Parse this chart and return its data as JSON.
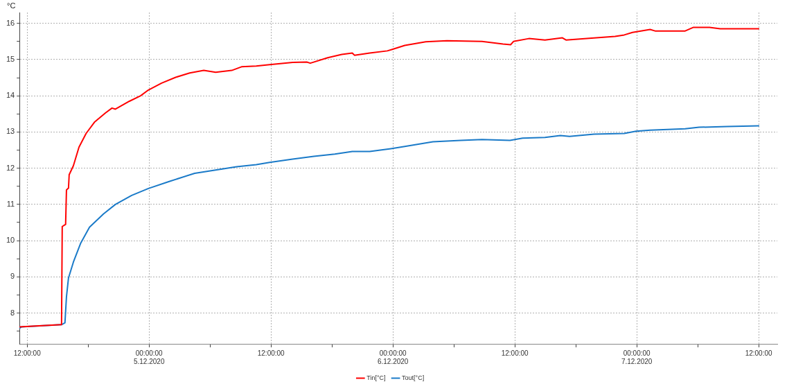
{
  "chart_data": {
    "type": "line",
    "ylabel": "°C",
    "xlim": [
      "2020-12-04T11:15",
      "2020-12-07T13:50"
    ],
    "xticks": [
      {
        "value": "2020-12-04T12:00",
        "label": "12:00:00"
      },
      {
        "value": "2020-12-04T18:00",
        "label": null
      },
      {
        "value": "2020-12-05T00:00",
        "label": "00:00:00\n5.12.2020"
      },
      {
        "value": "2020-12-05T06:00",
        "label": null
      },
      {
        "value": "2020-12-05T12:00",
        "label": "12:00:00"
      },
      {
        "value": "2020-12-05T18:00",
        "label": null
      },
      {
        "value": "2020-12-06T00:00",
        "label": "00:00:00\n6.12.2020"
      },
      {
        "value": "2020-12-06T06:00",
        "label": null
      },
      {
        "value": "2020-12-06T12:00",
        "label": "12:00:00"
      },
      {
        "value": "2020-12-06T18:00",
        "label": null
      },
      {
        "value": "2020-12-07T00:00",
        "label": "00:00:00\n7.12.2020"
      },
      {
        "value": "2020-12-07T06:00",
        "label": null
      },
      {
        "value": "2020-12-07T12:00",
        "label": "12:00:00"
      }
    ],
    "ylim": [
      7.15,
      16.3
    ],
    "yticks": [
      {
        "value": 7.5,
        "label": null
      },
      8,
      {
        "value": 8.5,
        "label": null
      },
      9,
      {
        "value": 9.5,
        "label": null
      },
      10,
      {
        "value": 10.5,
        "label": null
      },
      11,
      {
        "value": 11.5,
        "label": null
      },
      12,
      {
        "value": 12.5,
        "label": null
      },
      13,
      {
        "value": 13.5,
        "label": null
      },
      14,
      {
        "value": 14.5,
        "label": null
      },
      15,
      {
        "value": 15.5,
        "label": null
      },
      16
    ],
    "grid": true,
    "legend": "bottom",
    "marker": "none",
    "series": [
      {
        "name": "Tin[°C]",
        "color": "#ff0000",
        "x": [
          "2020-12-04T11:15",
          "2020-12-04T15:23",
          "2020-12-04T15:27",
          "2020-12-04T15:47",
          "2020-12-04T15:52",
          "2020-12-04T16:04",
          "2020-12-04T16:08",
          "2020-12-04T16:33",
          "2020-12-04T17:06",
          "2020-12-04T17:48",
          "2020-12-04T18:37",
          "2020-12-04T19:43",
          "2020-12-04T20:21",
          "2020-12-04T20:41",
          "2020-12-04T22:04",
          "2020-12-04T23:10",
          "2020-12-04T23:56",
          "2020-12-05T01:14",
          "2020-12-05T02:37",
          "2020-12-05T04:00",
          "2020-12-05T05:23",
          "2020-12-05T06:33",
          "2020-12-05T08:08",
          "2020-12-05T09:06",
          "2020-12-05T10:33",
          "2020-12-05T11:52",
          "2020-12-05T14:08",
          "2020-12-05T15:31",
          "2020-12-05T15:52",
          "2020-12-05T17:35",
          "2020-12-05T18:58",
          "2020-12-05T20:00",
          "2020-12-05T20:13",
          "2020-12-05T21:43",
          "2020-12-05T23:27",
          "2020-12-05T23:56",
          "2020-12-06T01:10",
          "2020-12-06T03:14",
          "2020-12-06T05:19",
          "2020-12-06T08:46",
          "2020-12-06T10:50",
          "2020-12-06T11:35",
          "2020-12-06T11:52",
          "2020-12-06T13:23",
          "2020-12-06T14:58",
          "2020-12-06T16:41",
          "2020-12-06T17:02",
          "2020-12-06T19:06",
          "2020-12-06T21:52",
          "2020-12-06T22:46",
          "2020-12-06T23:35",
          "2020-12-07T01:19",
          "2020-12-07T01:48",
          "2020-12-07T04:46",
          "2020-12-07T05:35",
          "2020-12-07T07:10",
          "2020-12-07T08:13",
          "2020-12-07T12:00"
        ],
        "values": [
          7.62,
          7.68,
          10.39,
          10.45,
          11.4,
          11.45,
          11.82,
          12.07,
          12.58,
          12.96,
          13.27,
          13.53,
          13.66,
          13.63,
          13.85,
          14.0,
          14.16,
          14.35,
          14.51,
          14.63,
          14.7,
          14.65,
          14.7,
          14.8,
          14.82,
          14.86,
          14.92,
          14.93,
          14.9,
          15.05,
          15.14,
          15.18,
          15.12,
          15.18,
          15.24,
          15.28,
          15.39,
          15.49,
          15.52,
          15.5,
          15.43,
          15.41,
          15.5,
          15.58,
          15.54,
          15.6,
          15.54,
          15.58,
          15.64,
          15.68,
          15.75,
          15.83,
          15.79,
          15.79,
          15.89,
          15.89,
          15.85,
          15.85
        ]
      },
      {
        "name": "Tout[°C]",
        "color": "#1a7ac8",
        "x": [
          "2020-12-04T11:15",
          "2020-12-04T11:27",
          "2020-12-04T15:23",
          "2020-12-04T15:43",
          "2020-12-04T15:52",
          "2020-12-04T16:04",
          "2020-12-04T16:33",
          "2020-12-04T17:15",
          "2020-12-04T18:08",
          "2020-12-04T19:31",
          "2020-12-04T20:41",
          "2020-12-04T22:17",
          "2020-12-04T23:56",
          "2020-12-05T01:56",
          "2020-12-05T04:29",
          "2020-12-05T06:33",
          "2020-12-05T08:37",
          "2020-12-05T10:33",
          "2020-12-05T11:52",
          "2020-12-05T14:08",
          "2020-12-05T16:13",
          "2020-12-05T18:17",
          "2020-12-05T20:00",
          "2020-12-05T21:43",
          "2020-12-05T23:48",
          "2020-12-06T01:10",
          "2020-12-06T03:56",
          "2020-12-06T06:41",
          "2020-12-06T08:46",
          "2020-12-06T11:31",
          "2020-12-06T12:46",
          "2020-12-06T14:58",
          "2020-12-06T16:29",
          "2020-12-06T17:23",
          "2020-12-06T19:48",
          "2020-12-06T22:46",
          "2020-12-06T23:56",
          "2020-12-07T01:19",
          "2020-12-07T04:46",
          "2020-12-07T06:08",
          "2020-12-07T08:54",
          "2020-12-07T12:00"
        ],
        "values": [
          7.58,
          7.62,
          7.68,
          7.73,
          8.45,
          8.97,
          9.41,
          9.92,
          10.37,
          10.74,
          11.0,
          11.25,
          11.44,
          11.63,
          11.86,
          11.95,
          12.04,
          12.1,
          12.16,
          12.25,
          12.33,
          12.39,
          12.46,
          12.46,
          12.54,
          12.6,
          12.73,
          12.77,
          12.79,
          12.77,
          12.83,
          12.85,
          12.9,
          12.88,
          12.94,
          12.96,
          13.02,
          13.05,
          13.09,
          13.13,
          13.15,
          13.17
        ]
      }
    ]
  }
}
